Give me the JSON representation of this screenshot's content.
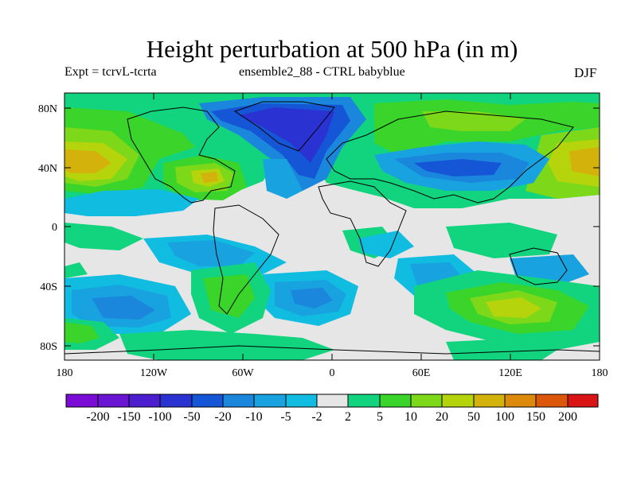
{
  "title": "Height perturbation at 500 hPa (in m)",
  "subtitle_left": "Expt = tcrvL-tcrta",
  "subtitle_center": "ensemble2_88 - CTRL babyblue",
  "subtitle_right": "DJF",
  "colors": {
    "neg200": "#7b0cd6",
    "neg150": "#6a14d4",
    "neg100": "#4b1ed0",
    "neg50": "#2a32d2",
    "neg20": "#1556d6",
    "neg10": "#1a86dc",
    "neg5": "#18a3e0",
    "neg2": "#10bce0",
    "zero": "#e6e6e6",
    "pos2": "#12d47e",
    "pos5": "#3ad42a",
    "pos10": "#7cd818",
    "pos20": "#b6d40c",
    "pos50": "#d4b20c",
    "pos100": "#dc8a0c",
    "pos150": "#dc560c",
    "pos200": "#d81414",
    "coast": "#000000"
  },
  "map": {
    "projection": "cylindrical equidistant",
    "lat_ticks": [
      "80N",
      "40N",
      "0",
      "40S",
      "80S"
    ],
    "lon_ticks": [
      "180",
      "120W",
      "60W",
      "0",
      "60E",
      "120E",
      "180"
    ]
  },
  "colorbar": {
    "labels": [
      "-200",
      "-150",
      "-100",
      "-50",
      "-20",
      "-10",
      "-5",
      "-2",
      "2",
      "5",
      "10",
      "20",
      "50",
      "100",
      "150",
      "200"
    ]
  }
}
